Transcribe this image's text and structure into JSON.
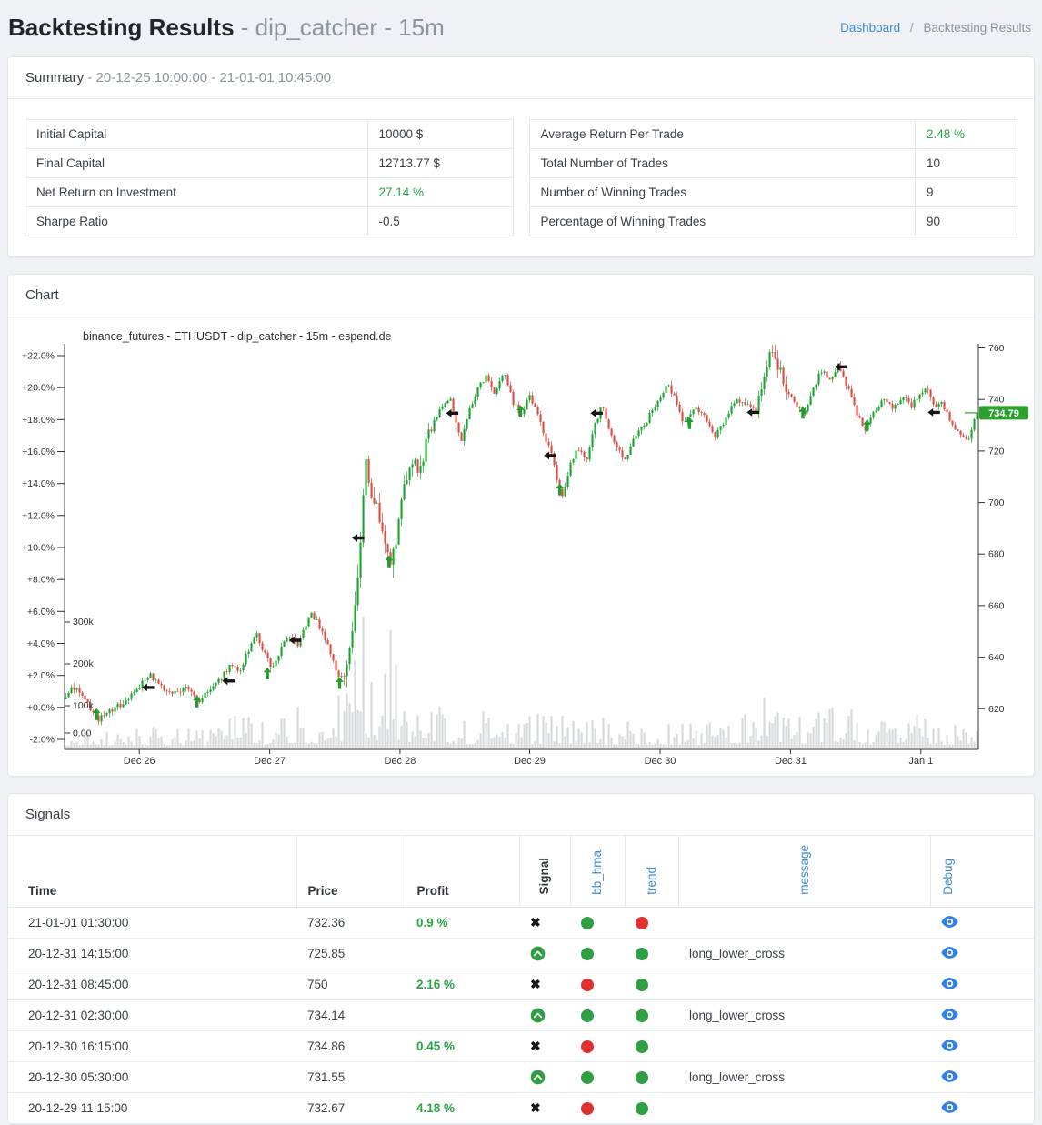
{
  "header": {
    "title": "Backtesting Results",
    "subtitle": "- dip_catcher - 15m",
    "breadcrumb": {
      "dashboard": "Dashboard",
      "separator": "/",
      "current": "Backtesting Results"
    }
  },
  "summary": {
    "title": "Summary",
    "range": "- 20-12-25 10:00:00 - 21-01-01 10:45:00",
    "left_rows": [
      {
        "label": "Initial Capital",
        "value": "10000 $",
        "highlight": false
      },
      {
        "label": "Final Capital",
        "value": "12713.77 $",
        "highlight": false
      },
      {
        "label": "Net Return on Investment",
        "value": "27.14 %",
        "highlight": true
      },
      {
        "label": "Sharpe Ratio",
        "value": "-0.5",
        "highlight": false
      }
    ],
    "right_rows": [
      {
        "label": "Average Return Per Trade",
        "value": "2.48 %",
        "highlight": true
      },
      {
        "label": "Total Number of Trades",
        "value": "10",
        "highlight": false
      },
      {
        "label": "Number of Winning Trades",
        "value": "9",
        "highlight": false
      },
      {
        "label": "Percentage of Winning Trades",
        "value": "90",
        "highlight": false
      }
    ]
  },
  "chart_card": {
    "title": "Chart"
  },
  "chart_data": {
    "type": "candlestick",
    "plot_title": "binance_futures - ETHUSDT - dip_catcher - 15m - espend.de",
    "pct_ticks": [
      -2,
      0,
      2,
      4,
      6,
      8,
      10,
      12,
      14,
      16,
      18,
      20,
      22
    ],
    "price_ticks": [
      620,
      640,
      660,
      680,
      700,
      720,
      740,
      760
    ],
    "volume_ticks_k": [
      100,
      200,
      300
    ],
    "volume_zero_label": "0.00",
    "x_ticks": [
      {
        "f": 0.0818,
        "label": "Dec 26"
      },
      {
        "f": 0.2245,
        "label": "Dec 27"
      },
      {
        "f": 0.3671,
        "label": "Dec 28"
      },
      {
        "f": 0.509,
        "label": "Dec 29"
      },
      {
        "f": 0.6517,
        "label": "Dec 30"
      },
      {
        "f": 0.7944,
        "label": "Dec 31"
      },
      {
        "f": 0.9371,
        "label": "Jan 1"
      }
    ],
    "base_price": 620.5,
    "last_price_label": "734.79",
    "last_price_pct": 18.42,
    "price_path": [
      [
        0.0,
        0.5
      ],
      [
        0.008,
        1.3
      ],
      [
        0.02,
        0.6
      ],
      [
        0.035,
        -0.8
      ],
      [
        0.048,
        -0.3
      ],
      [
        0.06,
        0.2
      ],
      [
        0.075,
        1.0
      ],
      [
        0.092,
        2.1
      ],
      [
        0.103,
        1.3
      ],
      [
        0.118,
        0.8
      ],
      [
        0.132,
        1.4
      ],
      [
        0.145,
        0.2
      ],
      [
        0.158,
        1.2
      ],
      [
        0.17,
        1.8
      ],
      [
        0.181,
        2.7
      ],
      [
        0.19,
        2.2
      ],
      [
        0.199,
        3.4
      ],
      [
        0.208,
        4.7
      ],
      [
        0.218,
        3.4
      ],
      [
        0.226,
        2.3
      ],
      [
        0.237,
        3.9
      ],
      [
        0.247,
        4.5
      ],
      [
        0.254,
        3.8
      ],
      [
        0.262,
        4.9
      ],
      [
        0.27,
        5.9
      ],
      [
        0.28,
        4.9
      ],
      [
        0.29,
        3.4
      ],
      [
        0.3,
        1.8
      ],
      [
        0.306,
        2.6
      ],
      [
        0.312,
        3.4
      ],
      [
        0.318,
        6.5
      ],
      [
        0.324,
        11.0
      ],
      [
        0.329,
        15.2
      ],
      [
        0.336,
        13.2
      ],
      [
        0.344,
        12.0
      ],
      [
        0.352,
        10.0
      ],
      [
        0.357,
        8.8
      ],
      [
        0.364,
        11.2
      ],
      [
        0.372,
        13.8
      ],
      [
        0.379,
        15.9
      ],
      [
        0.386,
        14.8
      ],
      [
        0.396,
        16.6
      ],
      [
        0.406,
        18.1
      ],
      [
        0.414,
        18.9
      ],
      [
        0.421,
        19.5
      ],
      [
        0.428,
        17.8
      ],
      [
        0.434,
        16.8
      ],
      [
        0.443,
        18.6
      ],
      [
        0.452,
        19.9
      ],
      [
        0.462,
        20.8
      ],
      [
        0.471,
        19.6
      ],
      [
        0.481,
        21.0
      ],
      [
        0.49,
        19.2
      ],
      [
        0.5,
        18.3
      ],
      [
        0.508,
        19.6
      ],
      [
        0.517,
        18.4
      ],
      [
        0.526,
        16.9
      ],
      [
        0.533,
        15.8
      ],
      [
        0.541,
        13.8
      ],
      [
        0.545,
        13.2
      ],
      [
        0.553,
        15.1
      ],
      [
        0.562,
        16.3
      ],
      [
        0.571,
        15.4
      ],
      [
        0.58,
        17.6
      ],
      [
        0.588,
        18.8
      ],
      [
        0.597,
        17.4
      ],
      [
        0.606,
        16.2
      ],
      [
        0.614,
        15.4
      ],
      [
        0.624,
        16.9
      ],
      [
        0.636,
        17.8
      ],
      [
        0.648,
        19.0
      ],
      [
        0.66,
        20.3
      ],
      [
        0.668,
        19.4
      ],
      [
        0.678,
        17.7
      ],
      [
        0.69,
        18.9
      ],
      [
        0.7,
        18.2
      ],
      [
        0.712,
        16.8
      ],
      [
        0.724,
        18.1
      ],
      [
        0.736,
        19.2
      ],
      [
        0.748,
        18.8
      ],
      [
        0.757,
        18.6
      ],
      [
        0.765,
        19.8
      ],
      [
        0.773,
        22.6
      ],
      [
        0.78,
        21.6
      ],
      [
        0.789,
        20.2
      ],
      [
        0.8,
        19.0
      ],
      [
        0.81,
        18.3
      ],
      [
        0.82,
        19.9
      ],
      [
        0.829,
        21.1
      ],
      [
        0.839,
        20.4
      ],
      [
        0.848,
        21.5
      ],
      [
        0.858,
        20.0
      ],
      [
        0.868,
        18.4
      ],
      [
        0.878,
        17.4
      ],
      [
        0.888,
        18.6
      ],
      [
        0.898,
        19.4
      ],
      [
        0.908,
        18.7
      ],
      [
        0.918,
        19.5
      ],
      [
        0.928,
        18.8
      ],
      [
        0.938,
        19.6
      ],
      [
        0.945,
        20.0
      ],
      [
        0.953,
        18.8
      ],
      [
        0.962,
        19.0
      ],
      [
        0.972,
        17.8
      ],
      [
        0.982,
        17.0
      ],
      [
        0.992,
        16.9
      ],
      [
        1.0,
        18.42
      ]
    ],
    "volume_profile_k": [
      [
        0,
        45
      ],
      [
        0.05,
        40
      ],
      [
        0.1,
        55
      ],
      [
        0.15,
        45
      ],
      [
        0.19,
        90
      ],
      [
        0.22,
        70
      ],
      [
        0.26,
        110
      ],
      [
        0.29,
        70
      ],
      [
        0.3,
        140
      ],
      [
        0.315,
        240
      ],
      [
        0.325,
        370
      ],
      [
        0.335,
        200
      ],
      [
        0.345,
        160
      ],
      [
        0.356,
        340
      ],
      [
        0.365,
        180
      ],
      [
        0.38,
        120
      ],
      [
        0.4,
        150
      ],
      [
        0.42,
        100
      ],
      [
        0.44,
        80
      ],
      [
        0.47,
        90
      ],
      [
        0.5,
        80
      ],
      [
        0.53,
        90
      ],
      [
        0.55,
        70
      ],
      [
        0.58,
        80
      ],
      [
        0.61,
        70
      ],
      [
        0.64,
        60
      ],
      [
        0.66,
        80
      ],
      [
        0.69,
        60
      ],
      [
        0.72,
        70
      ],
      [
        0.75,
        90
      ],
      [
        0.775,
        160
      ],
      [
        0.8,
        80
      ],
      [
        0.83,
        90
      ],
      [
        0.85,
        130
      ],
      [
        0.87,
        80
      ],
      [
        0.9,
        70
      ],
      [
        0.93,
        130
      ],
      [
        0.95,
        80
      ],
      [
        0.97,
        60
      ],
      [
        1,
        50
      ]
    ],
    "markers": {
      "entries": [
        [
          0.035,
          -0.45
        ],
        [
          0.145,
          0.35
        ],
        [
          0.222,
          2.1
        ],
        [
          0.301,
          1.5
        ],
        [
          0.355,
          9.1
        ],
        [
          0.499,
          18.5
        ],
        [
          0.542,
          13.6
        ],
        [
          0.684,
          17.75
        ],
        [
          0.808,
          18.4
        ],
        [
          0.878,
          17.6
        ]
      ],
      "exits": [
        [
          0.092,
          1.25
        ],
        [
          0.18,
          1.65
        ],
        [
          0.253,
          4.2
        ],
        [
          0.322,
          10.6
        ],
        [
          0.425,
          18.4
        ],
        [
          0.532,
          15.75
        ],
        [
          0.583,
          18.4
        ],
        [
          0.754,
          18.45
        ],
        [
          0.85,
          21.3
        ],
        [
          0.952,
          18.45
        ]
      ]
    },
    "colors": {
      "up": "#17a62c",
      "down": "#e04a3f",
      "volume": "#d2d5d9",
      "entry_arrow": "#1f9d2f",
      "exit_arrow": "#151515",
      "tag_bg": "#2ca02c",
      "tag_text": "#ffffff",
      "axis": "#333333"
    }
  },
  "signals": {
    "title": "Signals",
    "columns": {
      "time": "Time",
      "price": "Price",
      "profit": "Profit",
      "signal": "Signal",
      "bb_hma": "bb_hma",
      "trend": "trend",
      "message": "message",
      "debug": "Debug"
    },
    "rows": [
      {
        "time": "21-01-01 01:30:00",
        "price": "732.36",
        "profit": "0.9 %",
        "signal": "close",
        "bb_hma": "green",
        "trend": "red",
        "message": ""
      },
      {
        "time": "20-12-31 14:15:00",
        "price": "725.85",
        "profit": "",
        "signal": "open",
        "bb_hma": "green",
        "trend": "green",
        "message": "long_lower_cross"
      },
      {
        "time": "20-12-31 08:45:00",
        "price": "750",
        "profit": "2.16 %",
        "signal": "close",
        "bb_hma": "red",
        "trend": "green",
        "message": ""
      },
      {
        "time": "20-12-31 02:30:00",
        "price": "734.14",
        "profit": "",
        "signal": "open",
        "bb_hma": "green",
        "trend": "green",
        "message": "long_lower_cross"
      },
      {
        "time": "20-12-30 16:15:00",
        "price": "734.86",
        "profit": "0.45 %",
        "signal": "close",
        "bb_hma": "red",
        "trend": "green",
        "message": ""
      },
      {
        "time": "20-12-30 05:30:00",
        "price": "731.55",
        "profit": "",
        "signal": "open",
        "bb_hma": "green",
        "trend": "green",
        "message": "long_lower_cross"
      },
      {
        "time": "20-12-29 11:15:00",
        "price": "732.67",
        "profit": "4.18 %",
        "signal": "close",
        "bb_hma": "red",
        "trend": "green",
        "message": ""
      }
    ]
  },
  "colors": {
    "link_blue": "#3d8bd8",
    "positive_green": "#28a745",
    "dot_green": "#2f9e44",
    "dot_red": "#e03131",
    "eye_blue": "#2f80ed"
  }
}
